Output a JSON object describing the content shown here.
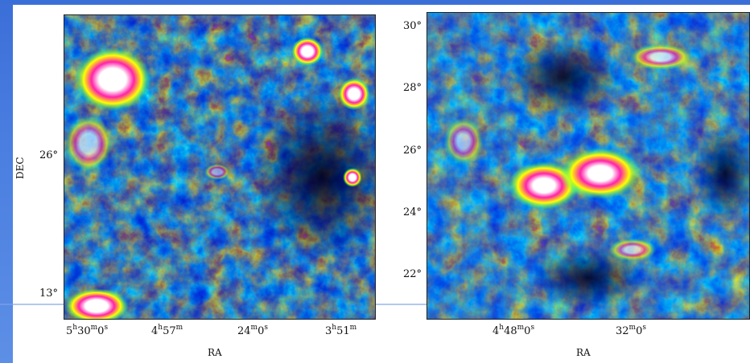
{
  "colors": {
    "slide_background": "#4a7ee0",
    "map_low": "#000033",
    "map_mid_low": "#0000ff",
    "map_mid": "#00ffff",
    "map_mid_high": "#00ff00",
    "map_high": "#ffff00",
    "map_higher": "#ff0000",
    "map_peak": "#ff00ff",
    "map_max": "#ffffff"
  },
  "left_map": {
    "x_axis_title": "RA",
    "y_axis_title": "DEC",
    "x_ticks": [
      {
        "h": "5",
        "hu": "h",
        "m": "30",
        "mu": "m",
        "s": "0",
        "su": "s"
      },
      {
        "h": "4",
        "hu": "h",
        "m": "57",
        "mu": "m",
        "s": "",
        "su": ""
      },
      {
        "h": "",
        "hu": "",
        "m": "24",
        "mu": "m",
        "s": "0",
        "su": "s"
      },
      {
        "h": "3",
        "hu": "h",
        "m": "51",
        "mu": "m",
        "s": "",
        "su": ""
      }
    ],
    "y_ticks": [
      "26°",
      "13°"
    ]
  },
  "right_map": {
    "x_axis_title": "RA",
    "x_ticks": [
      {
        "h": "4",
        "hu": "h",
        "m": "48",
        "mu": "m",
        "s": "0",
        "su": "s"
      },
      {
        "h": "",
        "hu": "",
        "m": "32",
        "mu": "m",
        "s": "0",
        "su": "s"
      }
    ],
    "y_ticks": [
      "30°",
      "28°",
      "26°",
      "24°",
      "22°"
    ]
  }
}
